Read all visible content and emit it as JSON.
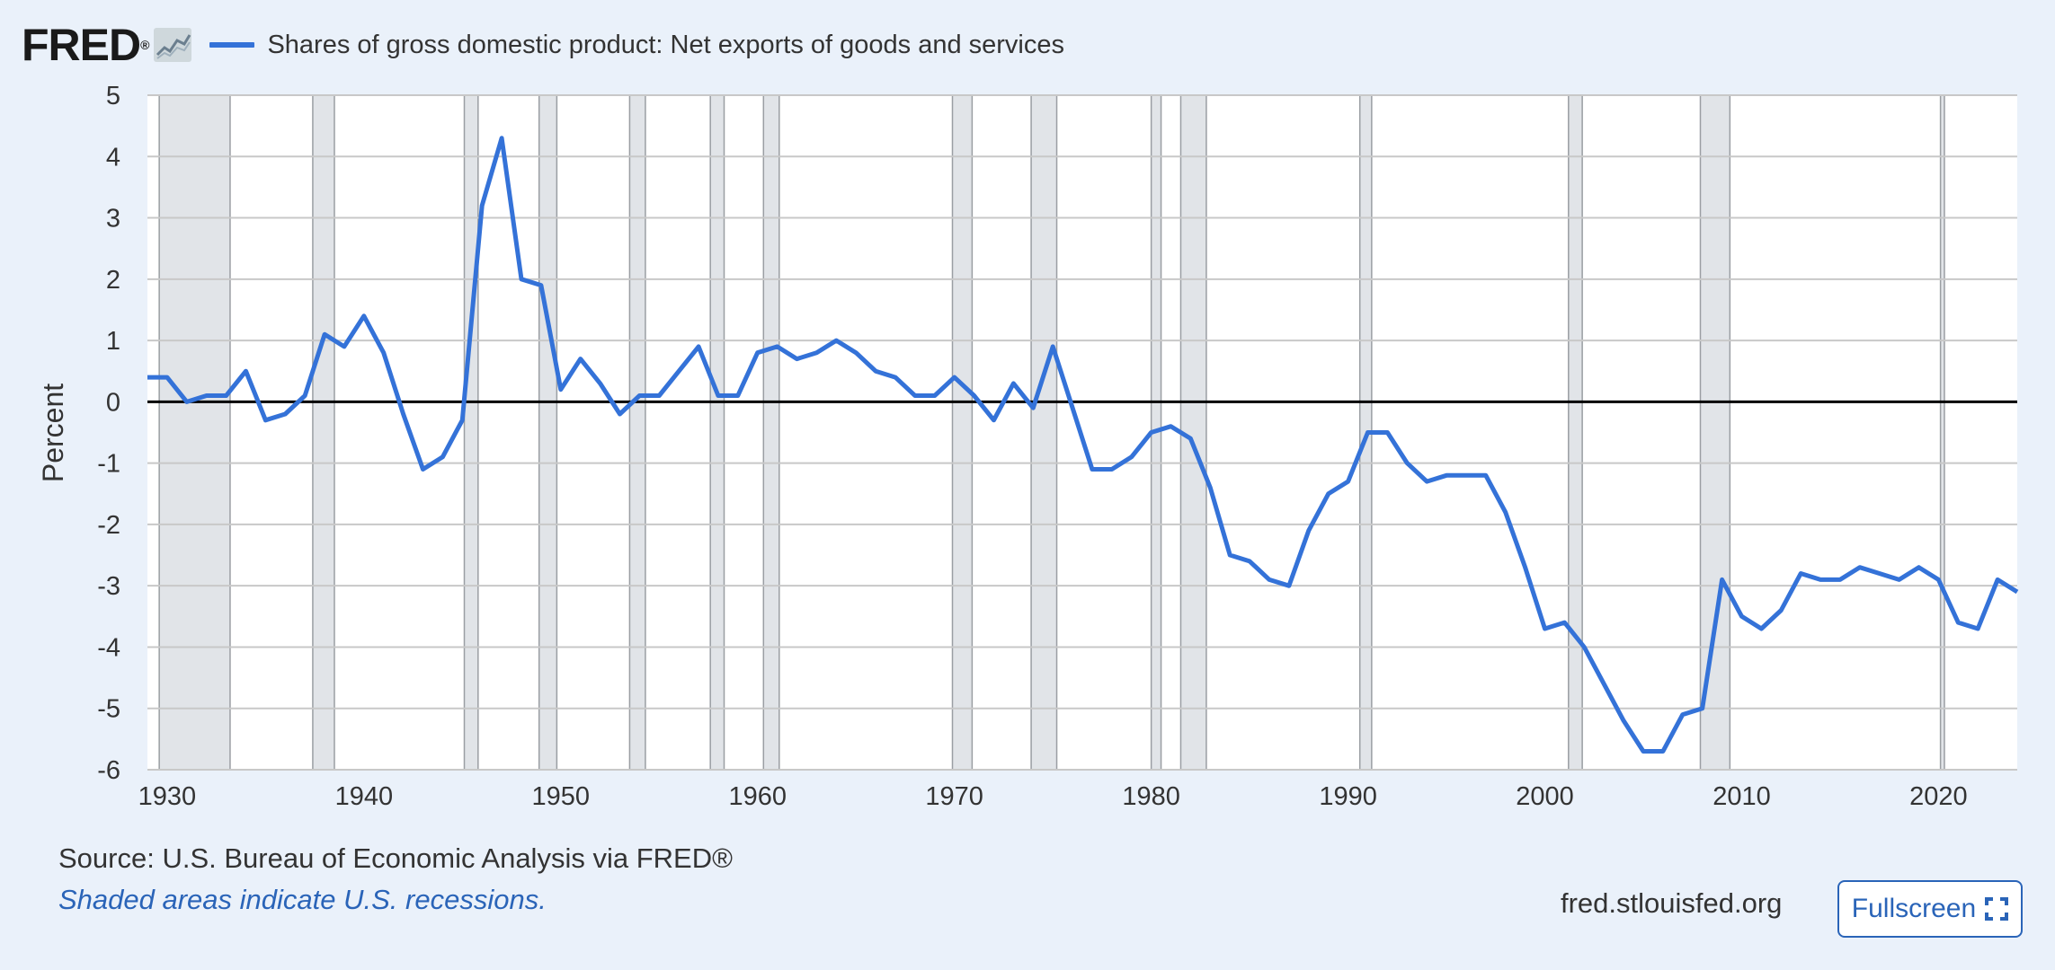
{
  "header": {
    "logo_text": "FRED",
    "logo_reg": "®",
    "legend_label": "Shares of gross domestic product: Net exports of goods and services"
  },
  "footer": {
    "source": "Source: U.S. Bureau of Economic Analysis via FRED®",
    "recession_note": "Shaded areas indicate U.S. recessions.",
    "site": "fred.stlouisfed.org",
    "fullscreen_label": "Fullscreen"
  },
  "colors": {
    "series": "#3472d8",
    "recession": "#e1e4e8",
    "background": "#eaf1fa",
    "accent": "#2a64b8"
  },
  "icons": [
    "fred-graph-icon",
    "fullscreen-icon"
  ],
  "chart_data": {
    "type": "line",
    "ylabel": "Percent",
    "xlim": [
      1929,
      2024
    ],
    "ylim": [
      -6,
      5
    ],
    "yticks": [
      5,
      4,
      3,
      2,
      1,
      0,
      -1,
      -2,
      -3,
      -4,
      -5,
      -6
    ],
    "xticks": [
      1930,
      1940,
      1950,
      1960,
      1970,
      1980,
      1990,
      2000,
      2010,
      2020
    ],
    "grid": true,
    "zero_line": true,
    "recessions": [
      [
        1929.6,
        1933.2
      ],
      [
        1937.4,
        1938.5
      ],
      [
        1945.1,
        1945.8
      ],
      [
        1948.9,
        1949.8
      ],
      [
        1953.5,
        1954.3
      ],
      [
        1957.6,
        1958.3
      ],
      [
        1960.3,
        1961.1
      ],
      [
        1969.9,
        1970.9
      ],
      [
        1973.9,
        1975.2
      ],
      [
        1980.0,
        1980.5
      ],
      [
        1981.5,
        1982.8
      ],
      [
        1990.6,
        1991.2
      ],
      [
        2001.2,
        2001.9
      ],
      [
        2007.9,
        2009.4
      ],
      [
        2020.1,
        2020.3
      ]
    ],
    "series": [
      {
        "name": "Shares of gross domestic product: Net exports of goods and services",
        "x": [
          1929,
          1930,
          1931,
          1932,
          1933,
          1934,
          1935,
          1936,
          1937,
          1938,
          1939,
          1940,
          1941,
          1942,
          1943,
          1944,
          1945,
          1946,
          1947,
          1948,
          1949,
          1950,
          1951,
          1952,
          1953,
          1954,
          1955,
          1956,
          1957,
          1958,
          1959,
          1960,
          1961,
          1962,
          1963,
          1964,
          1965,
          1966,
          1967,
          1968,
          1969,
          1970,
          1971,
          1972,
          1973,
          1974,
          1975,
          1976,
          1977,
          1978,
          1979,
          1980,
          1981,
          1982,
          1983,
          1984,
          1985,
          1986,
          1987,
          1988,
          1989,
          1990,
          1991,
          1992,
          1993,
          1994,
          1995,
          1996,
          1997,
          1998,
          1999,
          2000,
          2001,
          2002,
          2003,
          2004,
          2005,
          2006,
          2007,
          2008,
          2009,
          2010,
          2011,
          2012,
          2013,
          2014,
          2015,
          2016,
          2017,
          2018,
          2019,
          2020,
          2021,
          2022,
          2023,
          2024
        ],
        "y": [
          0.4,
          0.4,
          0.0,
          0.1,
          0.1,
          0.5,
          -0.3,
          -0.2,
          0.1,
          1.1,
          0.9,
          1.4,
          0.8,
          -0.2,
          -1.1,
          -0.9,
          -0.3,
          3.2,
          4.3,
          2.0,
          1.9,
          0.2,
          0.7,
          0.3,
          -0.2,
          0.1,
          0.1,
          0.5,
          0.9,
          0.1,
          0.1,
          0.8,
          0.9,
          0.7,
          0.8,
          1.0,
          0.8,
          0.5,
          0.4,
          0.1,
          0.1,
          0.4,
          0.1,
          -0.3,
          0.3,
          -0.1,
          0.9,
          -0.1,
          -1.1,
          -1.1,
          -0.9,
          -0.5,
          -0.4,
          -0.6,
          -1.4,
          -2.5,
          -2.6,
          -2.9,
          -3.0,
          -2.1,
          -1.5,
          -1.3,
          -0.5,
          -0.5,
          -1.0,
          -1.3,
          -1.2,
          -1.2,
          -1.2,
          -1.8,
          -2.7,
          -3.7,
          -3.6,
          -4.0,
          -4.6,
          -5.2,
          -5.7,
          -5.7,
          -5.1,
          -5.0,
          -2.9,
          -3.5,
          -3.7,
          -3.4,
          -2.8,
          -2.9,
          -2.9,
          -2.7,
          -2.8,
          -2.9,
          -2.7,
          -2.9,
          -3.6,
          -3.7,
          -2.9,
          -3.1
        ]
      }
    ]
  }
}
